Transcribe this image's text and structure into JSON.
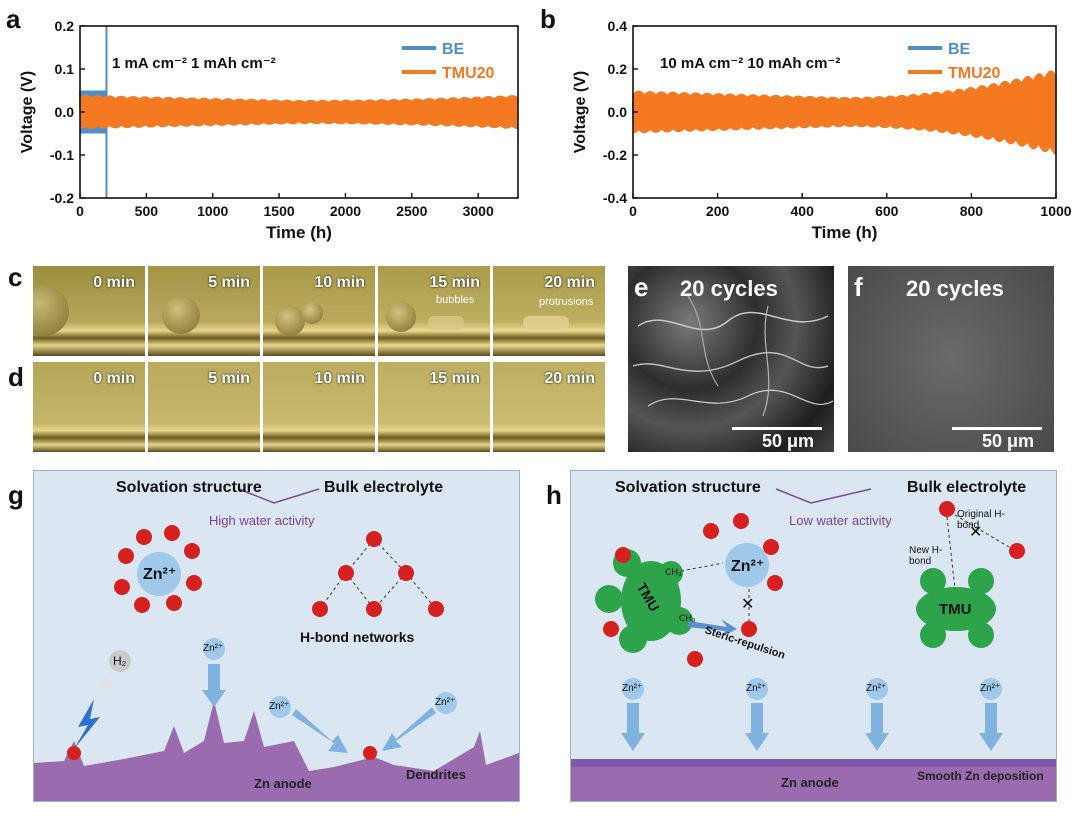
{
  "panel_labels": {
    "a": "a",
    "b": "b",
    "c": "c",
    "d": "d",
    "e": "e",
    "f": "f",
    "g": "g",
    "h": "h"
  },
  "chart_data": [
    {
      "type": "line",
      "panel": "a",
      "ylabel": "Voltage (V)",
      "xlabel": "Time (h)",
      "xlim": [
        0,
        3300
      ],
      "ylim": [
        -0.2,
        0.2
      ],
      "xticks": [
        "0",
        "500",
        "1000",
        "1500",
        "2000",
        "2500",
        "3000"
      ],
      "yticks": [
        "0.2",
        "0.1",
        "0.0",
        "-0.1",
        "-0.2"
      ],
      "annotation": "1 mA cm⁻²  1 mAh cm⁻²",
      "legend": [
        "BE",
        "TMU20"
      ],
      "series": [
        {
          "name": "BE",
          "color": "#4f8fc6",
          "x_end": 200,
          "amplitude": 0.05,
          "short_circuit_at": 200
        },
        {
          "name": "TMU20",
          "color": "#f47920",
          "x_end": 3300,
          "amplitude_start": 0.04,
          "amplitude_mid": 0.028,
          "amplitude_end": 0.04
        }
      ]
    },
    {
      "type": "line",
      "panel": "b",
      "ylabel": "Voltage (V)",
      "xlabel": "Time (h)",
      "xlim": [
        0,
        1000
      ],
      "ylim": [
        -0.4,
        0.4
      ],
      "xticks": [
        "0",
        "200",
        "400",
        "600",
        "800",
        "1000"
      ],
      "yticks": [
        "0.4",
        "0.2",
        "0.0",
        "-0.2",
        "-0.4"
      ],
      "annotation": "10 mA cm⁻²  10 mAh cm⁻²",
      "legend": [
        "BE",
        "TMU20"
      ],
      "series": [
        {
          "name": "BE",
          "color": "#4f8fc6",
          "x_end": 40,
          "amplitude": 0.05
        },
        {
          "name": "TMU20",
          "color": "#f47920",
          "x_end": 1000,
          "amplitude_start": 0.1,
          "amplitude_mid": 0.07,
          "amplitude_end": 0.2
        }
      ]
    }
  ],
  "strip_c": {
    "frames": [
      "0 min",
      "5 min",
      "10 min",
      "15 min",
      "20 min"
    ],
    "notes": [
      "bubbles",
      "protrusions"
    ]
  },
  "strip_d": {
    "frames": [
      "0 min",
      "5 min",
      "10 min",
      "15 min",
      "20 min"
    ]
  },
  "sem_e": {
    "label": "20 cycles",
    "scale": "50 μm"
  },
  "sem_f": {
    "label": "20 cycles",
    "scale": "50 μm"
  },
  "panel_g": {
    "solvation": "Solvation structure",
    "bulk": "Bulk electrolyte",
    "activity": "High water activity",
    "zn_center": "Zn²⁺",
    "zn_small": "Zn²⁺",
    "h2": "H₂",
    "hbond": "H-bond networks",
    "anode": "Zn anode",
    "dendrites": "Dendrites"
  },
  "panel_h": {
    "solvation": "Solvation structure",
    "bulk": "Bulk electrolyte",
    "activity": "Low water activity",
    "zn_center": "Zn²⁺",
    "zn_small": "Zn²⁺",
    "tmu": "TMU",
    "ch3": "CH₃",
    "steric": "Steric-repulsion",
    "original_hbond": "Original H-bond",
    "new_hbond": "New H-bond",
    "anode": "Zn anode",
    "smooth": "Smooth Zn deposition"
  }
}
